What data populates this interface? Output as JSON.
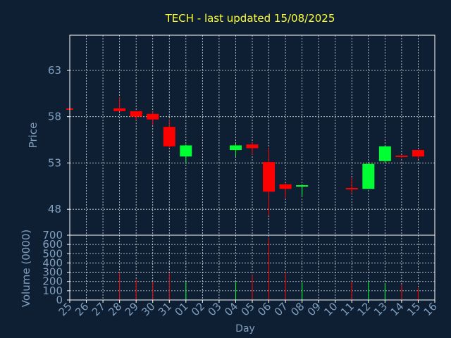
{
  "chart_data": {
    "type": "candlestick",
    "title": "TECH - last updated 15/08/2025",
    "colors": {
      "background": "#0f1f33",
      "axis": "#ffffff",
      "grid": "#ffffff",
      "title": "#ffff33",
      "label": "#7f9fbf",
      "tick": "#7f9fbf",
      "up": "#00ff33",
      "down": "#ff0000"
    },
    "x_labels": [
      "25",
      "26",
      "27",
      "28",
      "29",
      "30",
      "31",
      "01",
      "02",
      "03",
      "04",
      "05",
      "06",
      "07",
      "08",
      "09",
      "10",
      "11",
      "12",
      "13",
      "14",
      "15",
      "16"
    ],
    "xlabel": "Day",
    "price": {
      "ylabel": "Price",
      "ylim": [
        45.2,
        66.8
      ],
      "yticks": [
        48,
        53,
        58,
        63
      ]
    },
    "volume": {
      "ylabel": "Volume (0000)",
      "ylim": [
        0,
        700
      ],
      "yticks": [
        0,
        100,
        200,
        300,
        400,
        500,
        600,
        700
      ]
    },
    "candles": [
      {
        "day": "25",
        "open": 58.9,
        "high": 58.9,
        "low": 58.9,
        "close": 58.9,
        "volume": 0,
        "dir": "down"
      },
      {
        "day": "28",
        "open": 58.9,
        "high": 60.1,
        "low": 58.6,
        "close": 58.6,
        "volume": 300,
        "dir": "down"
      },
      {
        "day": "29",
        "open": 58.6,
        "high": 58.6,
        "low": 57.6,
        "close": 58.0,
        "volume": 220,
        "dir": "down"
      },
      {
        "day": "30",
        "open": 58.3,
        "high": 58.6,
        "low": 57.1,
        "close": 57.7,
        "volume": 200,
        "dir": "down"
      },
      {
        "day": "31",
        "open": 56.9,
        "high": 57.7,
        "low": 54.6,
        "close": 54.8,
        "volume": 295,
        "dir": "down"
      },
      {
        "day": "01",
        "open": 53.7,
        "high": 55.0,
        "low": 52.9,
        "close": 54.9,
        "volume": 195,
        "dir": "up"
      },
      {
        "day": "04",
        "open": 54.4,
        "high": 55.1,
        "low": 53.7,
        "close": 54.9,
        "volume": 195,
        "dir": "up"
      },
      {
        "day": "05",
        "open": 55.0,
        "high": 55.2,
        "low": 53.9,
        "close": 54.6,
        "volume": 270,
        "dir": "down"
      },
      {
        "day": "06",
        "open": 53.1,
        "high": 54.6,
        "low": 47.3,
        "close": 49.9,
        "volume": 670,
        "dir": "down"
      },
      {
        "day": "07",
        "open": 50.7,
        "high": 50.8,
        "low": 49.2,
        "close": 50.2,
        "volume": 300,
        "dir": "down"
      },
      {
        "day": "08",
        "open": 50.5,
        "high": 50.7,
        "low": 49.4,
        "close": 50.6,
        "volume": 190,
        "dir": "up"
      },
      {
        "day": "11",
        "open": 50.3,
        "high": 51.4,
        "low": 49.7,
        "close": 50.3,
        "volume": 200,
        "dir": "down"
      },
      {
        "day": "12",
        "open": 50.2,
        "high": 53.0,
        "low": 50.2,
        "close": 52.9,
        "volume": 205,
        "dir": "up"
      },
      {
        "day": "13",
        "open": 53.2,
        "high": 54.8,
        "low": 53.0,
        "close": 54.8,
        "volume": 180,
        "dir": "up"
      },
      {
        "day": "14",
        "open": 53.8,
        "high": 53.8,
        "low": 53.5,
        "close": 53.8,
        "volume": 165,
        "dir": "down"
      },
      {
        "day": "15",
        "open": 54.4,
        "high": 54.4,
        "low": 53.4,
        "close": 53.7,
        "volume": 130,
        "dir": "down"
      }
    ]
  }
}
